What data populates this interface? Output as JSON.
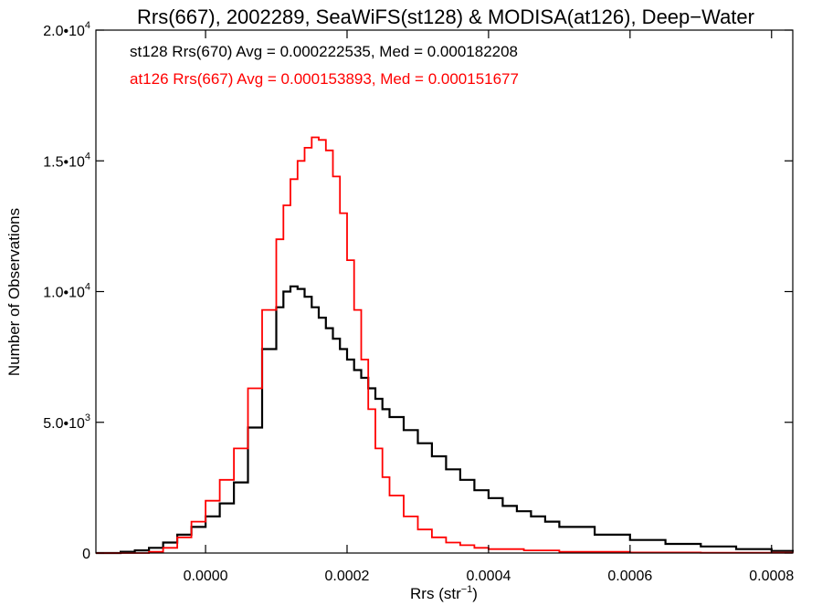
{
  "chart_data": {
    "type": "line",
    "title": "Rrs(667), 2002289, SeaWiFS(st128) & MODISA(at126), Deep−Water",
    "xlabel": "Rrs (str",
    "xlabel_sup": "−1",
    "xlabel_close": ")",
    "ylabel": "Number of Observations",
    "xlim": [
      -0.000155,
      0.00083
    ],
    "ylim": [
      0,
      20000
    ],
    "xticks": [
      0.0,
      0.0002,
      0.0004,
      0.0006,
      0.0008
    ],
    "xtick_labels": [
      "0.0000",
      "0.0002",
      "0.0004",
      "0.0006",
      "0.0008"
    ],
    "yticks": [
      0,
      5000,
      10000,
      15000,
      20000
    ],
    "ytick_labels": [
      {
        "base": "0",
        "exp": ""
      },
      {
        "base": "5.0•10",
        "exp": "3"
      },
      {
        "base": "1.0•10",
        "exp": "4"
      },
      {
        "base": "1.5•10",
        "exp": "4"
      },
      {
        "base": "2.0•10",
        "exp": "4"
      }
    ],
    "annotations": [
      {
        "text": "st128 Rrs(670) Avg = 0.000222535, Med = 0.000182208",
        "color": "#000000"
      },
      {
        "text": "at126 Rrs(667) Avg = 0.000153893, Med = 0.000151677",
        "color": "#ff0000"
      }
    ],
    "series": [
      {
        "color": "#000000",
        "step": true,
        "x": [
          -0.000155,
          -0.00012,
          -0.0001,
          -8e-05,
          -6e-05,
          -4e-05,
          -2e-05,
          0.0,
          2e-05,
          4e-05,
          6e-05,
          8e-05,
          0.0001,
          0.00011,
          0.00012,
          0.00013,
          0.00014,
          0.00015,
          0.00016,
          0.00017,
          0.00018,
          0.00019,
          0.0002,
          0.00021,
          0.00022,
          0.00023,
          0.00024,
          0.00025,
          0.00026,
          0.00028,
          0.0003,
          0.00032,
          0.00034,
          0.00036,
          0.00038,
          0.0004,
          0.00042,
          0.00044,
          0.00046,
          0.00048,
          0.0005,
          0.00055,
          0.0006,
          0.00065,
          0.0007,
          0.00075,
          0.0008,
          0.00083
        ],
        "y": [
          0,
          50,
          100,
          200,
          400,
          700,
          1000,
          1400,
          1900,
          2700,
          4800,
          7800,
          9400,
          10000,
          10200,
          10100,
          9800,
          9400,
          9000,
          8600,
          8200,
          7800,
          7400,
          7000,
          6700,
          6300,
          5900,
          5500,
          5200,
          4700,
          4200,
          3700,
          3200,
          2800,
          2400,
          2100,
          1800,
          1600,
          1400,
          1200,
          1000,
          700,
          500,
          350,
          250,
          150,
          80,
          50
        ]
      },
      {
        "color": "#ff0000",
        "step": true,
        "x": [
          -0.000155,
          -0.0001,
          -8e-05,
          -6e-05,
          -4e-05,
          -2e-05,
          0.0,
          2e-05,
          4e-05,
          6e-05,
          8e-05,
          0.0001,
          0.00011,
          0.00012,
          0.00013,
          0.00014,
          0.00015,
          0.00016,
          0.00017,
          0.00018,
          0.00019,
          0.0002,
          0.00021,
          0.00022,
          0.00023,
          0.00024,
          0.00025,
          0.00026,
          0.00028,
          0.0003,
          0.00032,
          0.00034,
          0.00036,
          0.00038,
          0.0004,
          0.00045,
          0.0005,
          0.0006,
          0.0007,
          0.00083
        ],
        "y": [
          0,
          0,
          50,
          200,
          600,
          1200,
          2000,
          2800,
          4000,
          6300,
          9300,
          12000,
          13300,
          14300,
          15000,
          15500,
          15900,
          15800,
          15400,
          14400,
          13000,
          11200,
          9300,
          7400,
          5500,
          4000,
          2900,
          2200,
          1400,
          900,
          600,
          400,
          300,
          200,
          150,
          100,
          50,
          20,
          10,
          0
        ]
      }
    ]
  }
}
